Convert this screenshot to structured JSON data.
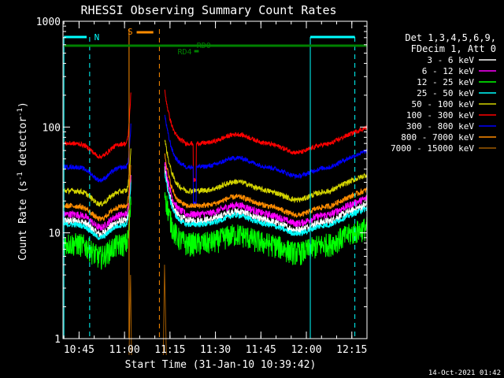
{
  "chart_data": {
    "type": "line",
    "title": "RHESSI Observing Summary Count Rates",
    "xlabel": "Start Time (31-Jan-10 10:39:42)",
    "ylabel_main": "Count Rate (s",
    "ylabel_sup1": "-1",
    "ylabel_mid": " detector",
    "ylabel_sup2": "-1",
    "ylabel_end": ")",
    "footer": "14-Oct-2021 01:42",
    "xlim_min": [
      639.7,
      740
    ],
    "ylim": [
      1,
      1000
    ],
    "x_ticks": [
      {
        "t": 645,
        "label": "10:45"
      },
      {
        "t": 660,
        "label": "11:00"
      },
      {
        "t": 675,
        "label": "11:15"
      },
      {
        "t": 690,
        "label": "11:30"
      },
      {
        "t": 705,
        "label": "11:45"
      },
      {
        "t": 720,
        "label": "12:00"
      },
      {
        "t": 735,
        "label": "12:15"
      }
    ],
    "y_ticks": [
      {
        "v": 1,
        "label": "1"
      },
      {
        "v": 10,
        "label": "10"
      },
      {
        "v": 100,
        "label": "100"
      },
      {
        "v": 1000,
        "label": "1000"
      }
    ],
    "legend_header": [
      "Det 1,3,4,5,6,9,",
      "FDecim 1, Att 0"
    ],
    "series": [
      {
        "name": "3 - 6 keV",
        "color": "#ffffff",
        "baseline": 13,
        "noise": 0.09
      },
      {
        "name": "6 - 12 keV",
        "color": "#ff00ff",
        "baseline": 15,
        "noise": 0.08
      },
      {
        "name": "12 - 25 keV",
        "color": "#00ff00",
        "baseline": 8,
        "noise": 0.16
      },
      {
        "name": "25 - 50 keV",
        "color": "#00ffff",
        "baseline": 12,
        "noise": 0.06
      },
      {
        "name": "50 - 100 keV",
        "color": "#d4d400",
        "baseline": 25,
        "noise": 0.06
      },
      {
        "name": "100 - 300 keV",
        "color": "#ff0000",
        "baseline": 70,
        "noise": 0.05
      },
      {
        "name": "300 - 800 keV",
        "color": "#0000ff",
        "baseline": 42,
        "noise": 0.05
      },
      {
        "name": "800 - 7000 keV",
        "color": "#ff8c00",
        "baseline": 18,
        "noise": 0.06
      },
      {
        "name": "7000 - 15000 keV",
        "color": "#a05a00",
        "baseline": 1,
        "noise": 0.0
      }
    ],
    "annotations": {
      "N": "N",
      "S": "S",
      "RD0": "RD0",
      "RD4": "RD4"
    },
    "colors": {
      "axes": "#ffffff",
      "night": "#00ffff",
      "saa": "#ff8c00",
      "data_flag": "#008000"
    }
  }
}
